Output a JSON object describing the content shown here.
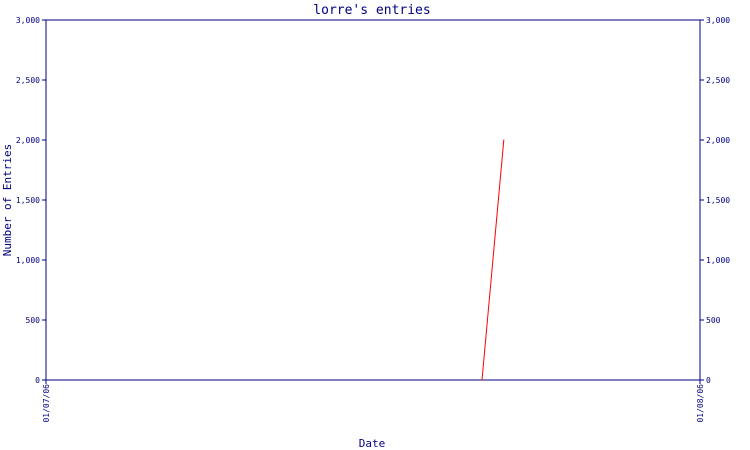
{
  "chart_data": {
    "type": "line",
    "title": "lorre's entries",
    "xlabel": "Date",
    "ylabel": "Number of Entries",
    "ylim": [
      0,
      3000
    ],
    "yticks": [
      0,
      500,
      1000,
      1500,
      2000,
      2500,
      3000
    ],
    "ytick_labels": [
      "0",
      "500",
      "1,000",
      "1,500",
      "2,000",
      "2,500",
      "3,000"
    ],
    "xlim": [
      "2006-01-07",
      "2006-01-08"
    ],
    "xtick_labels": [
      "01/07/06",
      "01/08/06"
    ],
    "series": [
      {
        "color": "#ff0000",
        "points": [
          {
            "x": "2006-01-07 16:00",
            "y": 0
          },
          {
            "x": "2006-01-07 16:48",
            "y": 2000
          }
        ]
      }
    ],
    "grid": false,
    "axis_color": "#000080"
  }
}
